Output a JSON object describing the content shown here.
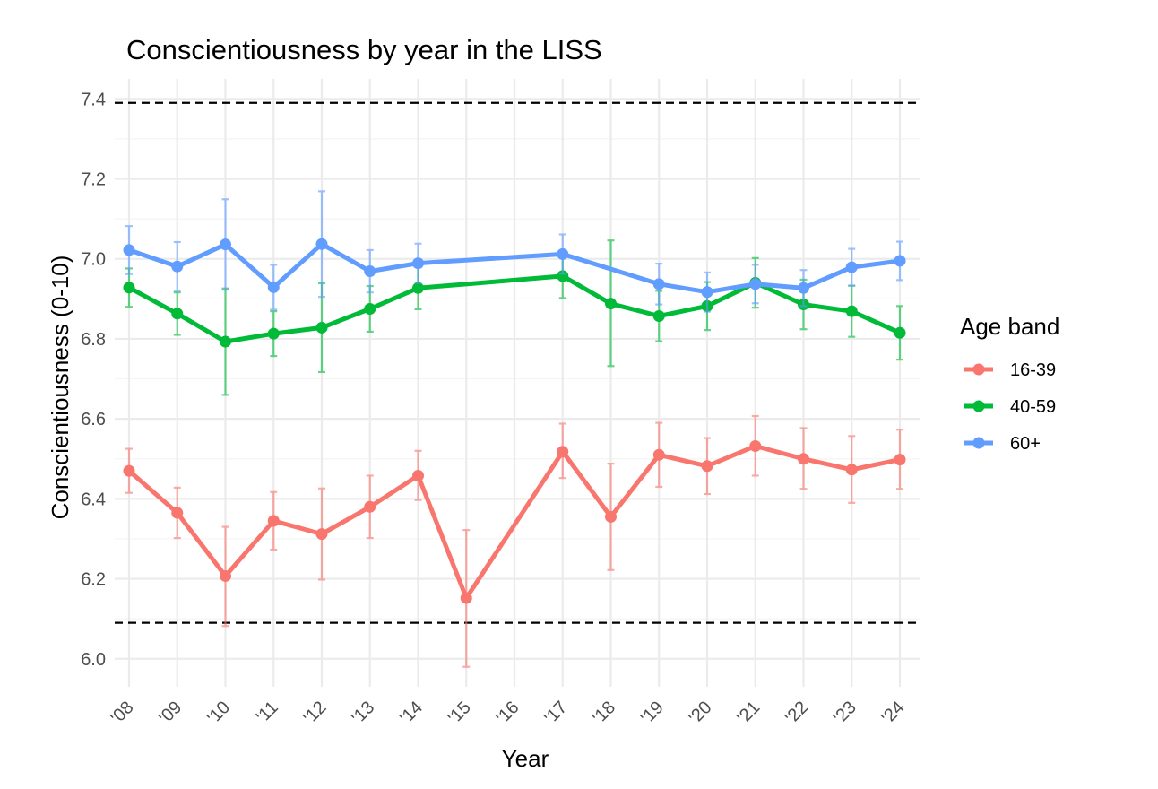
{
  "chart_data": {
    "type": "line",
    "title": "Conscientiousness by year in the LISS",
    "xlabel": "Year",
    "ylabel": "Conscientiousness (0-10)",
    "ylim": [
      5.93,
      7.45
    ],
    "yticks": [
      6.0,
      6.2,
      6.4,
      6.6,
      6.8,
      7.0,
      7.2,
      7.4
    ],
    "ytick_labels": [
      "6.0",
      "6.2",
      "6.4",
      "6.6",
      "6.8",
      "7.0",
      "7.2",
      "7.4"
    ],
    "categories": [
      "'08",
      "'09",
      "'10",
      "'11",
      "'12",
      "'13",
      "'14",
      "'15",
      "'16",
      "'17",
      "'18",
      "'19",
      "'20",
      "'21",
      "'22",
      "'23",
      "'24"
    ],
    "reference_lines": [
      7.39,
      6.09
    ],
    "legend": {
      "title": "Age band",
      "position": "right"
    },
    "series": [
      {
        "name": "16-39",
        "color": "#F8766D",
        "values": [
          6.47,
          6.365,
          6.207,
          6.345,
          6.312,
          6.38,
          6.458,
          6.152,
          null,
          6.518,
          6.355,
          6.51,
          6.482,
          6.532,
          6.5,
          6.473,
          6.498
        ],
        "lower": [
          6.415,
          6.302,
          6.082,
          6.273,
          6.198,
          6.302,
          6.397,
          5.98,
          null,
          6.452,
          6.222,
          6.43,
          6.412,
          6.458,
          6.425,
          6.39,
          6.425
        ],
        "upper": [
          6.525,
          6.428,
          6.33,
          6.417,
          6.426,
          6.458,
          6.52,
          6.322,
          null,
          6.588,
          6.488,
          6.59,
          6.552,
          6.607,
          6.577,
          6.557,
          6.573
        ]
      },
      {
        "name": "40-59",
        "color": "#00BA38",
        "values": [
          6.928,
          6.863,
          6.793,
          6.813,
          6.828,
          6.875,
          6.927,
          null,
          null,
          6.957,
          6.888,
          6.857,
          6.882,
          6.94,
          6.886,
          6.869,
          6.815
        ],
        "lower": [
          6.88,
          6.81,
          6.66,
          6.757,
          6.717,
          6.818,
          6.874,
          null,
          null,
          6.902,
          6.732,
          6.794,
          6.822,
          6.878,
          6.824,
          6.805,
          6.748
        ],
        "upper": [
          6.976,
          6.916,
          6.926,
          6.869,
          6.939,
          6.932,
          6.98,
          null,
          null,
          7.012,
          7.046,
          6.92,
          6.942,
          7.002,
          6.948,
          6.933,
          6.882
        ]
      },
      {
        "name": "60+",
        "color": "#619CFF",
        "values": [
          7.022,
          6.981,
          7.036,
          6.929,
          7.037,
          6.969,
          6.989,
          null,
          null,
          7.012,
          null,
          6.937,
          6.917,
          6.937,
          6.927,
          6.979,
          6.995
        ],
        "lower": [
          6.962,
          6.92,
          6.923,
          6.873,
          6.905,
          6.916,
          6.94,
          null,
          null,
          6.963,
          null,
          6.886,
          6.868,
          6.889,
          6.882,
          6.933,
          6.947
        ],
        "upper": [
          7.082,
          7.042,
          7.149,
          6.985,
          7.169,
          7.022,
          7.038,
          null,
          null,
          7.061,
          null,
          6.988,
          6.966,
          6.985,
          6.972,
          7.025,
          7.043
        ]
      }
    ]
  }
}
